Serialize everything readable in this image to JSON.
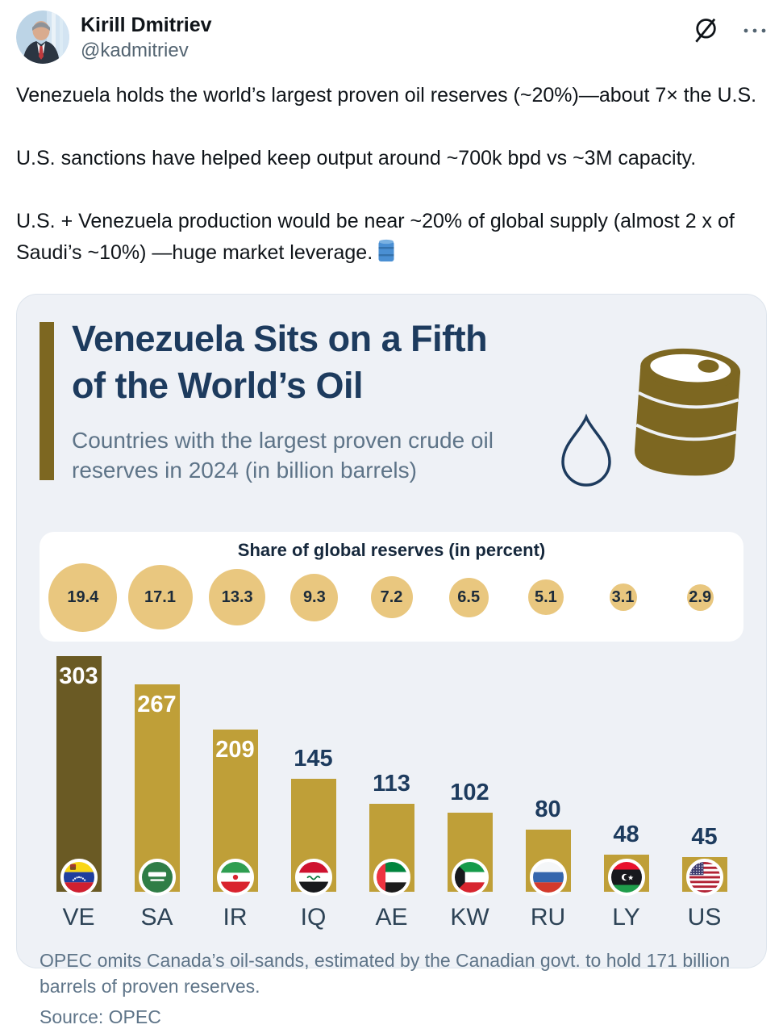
{
  "tweet": {
    "author_name": "Kirill Dmitriev",
    "author_handle": "@kadmitriev",
    "paragraphs": [
      "Venezuela holds the world’s largest proven oil reserves (~20%)—about 7× the U.S.",
      "U.S. sanctions have helped keep output around ~700k bpd vs ~3M capacity.",
      "U.S. + Venezuela production would be near ~20% of global supply (almost 2 x of Saudi’s ~10%) —huge market leverage."
    ],
    "emoji": "oil-drum",
    "actions": {
      "grok": "grok-icon",
      "more": "more-menu"
    }
  },
  "infographic": {
    "title_line1": "Venezuela Sits on a Fifth",
    "title_line2": "of the World’s Oil",
    "subtitle": "Countries with the largest proven crude oil reserves in 2024 (in billion barrels)",
    "share_title": "Share of global reserves (in percent)",
    "footnote": "OPEC omits Canada’s oil-sands, estimated by the Canadian govt. to hold 171 billion barrels of proven reserves.",
    "source": "Source: OPEC"
  },
  "chart_data": {
    "type": "bar",
    "title": "Venezuela Sits on a Fifth of the World’s Oil",
    "subtitle": "Countries with the largest proven crude oil reserves in 2024 (in billion barrels)",
    "categories": [
      "VE",
      "SA",
      "IR",
      "IQ",
      "AE",
      "KW",
      "RU",
      "LY",
      "US"
    ],
    "flag_names": [
      "venezuela",
      "saudi-arabia",
      "iran",
      "iraq",
      "uae",
      "kuwait",
      "russia",
      "libya",
      "usa"
    ],
    "series": [
      {
        "name": "Proven crude oil reserves 2024 (billion barrels)",
        "values": [
          303,
          267,
          209,
          145,
          113,
          102,
          80,
          48,
          45
        ]
      },
      {
        "name": "Share of global reserves (percent)",
        "values": [
          19.4,
          17.1,
          13.3,
          9.3,
          7.2,
          6.5,
          5.1,
          3.1,
          2.9
        ]
      }
    ],
    "ylim": [
      0,
      303
    ],
    "grid": false,
    "legend": "none",
    "highlight_category": "VE",
    "value_labels_inside_threshold": 200
  },
  "colors": {
    "card_bg": "#eef1f6",
    "accent": "#7d6721",
    "navy": "#1d3b5e",
    "muted": "#5e7488",
    "bubble": "#e9c77f",
    "bar": "#bf9f38",
    "bar_highlight": "#6a5a24",
    "value_inside": "#ffffff",
    "emoji_blue": "#4a8fd3"
  }
}
